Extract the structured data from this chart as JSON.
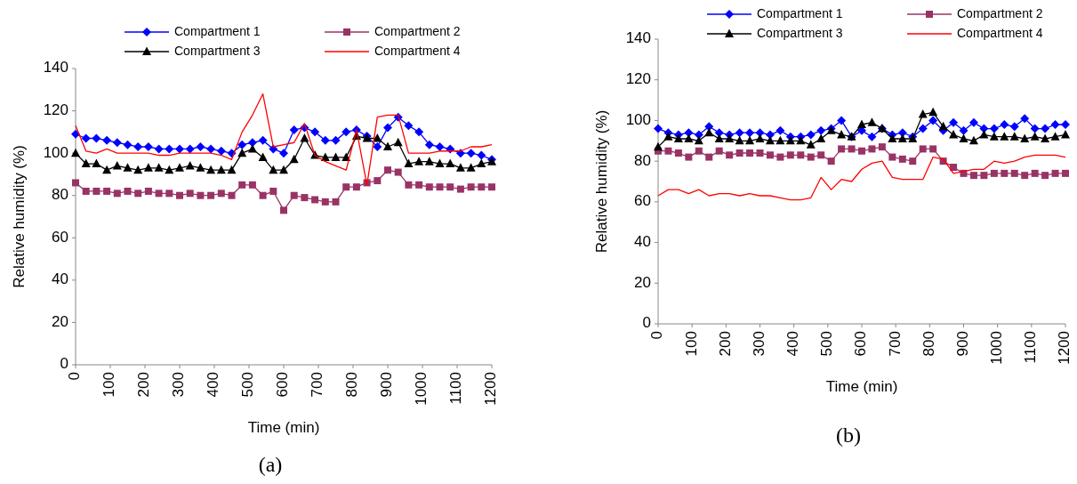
{
  "chart_data": [
    {
      "type": "line",
      "xlabel": "Time (min)",
      "ylabel": "Relative humidity (%)",
      "annotations": [
        "(a)"
      ],
      "xlim": [
        0,
        1200
      ],
      "xticks": [
        0,
        100,
        200,
        300,
        400,
        500,
        600,
        700,
        800,
        900,
        1000,
        1100,
        1200
      ],
      "ylim": [
        0,
        140
      ],
      "yticks": [
        0,
        20,
        40,
        60,
        80,
        100,
        120,
        140
      ],
      "grid": false,
      "legend": "top",
      "x": [
        0,
        30,
        60,
        90,
        120,
        150,
        180,
        210,
        240,
        270,
        300,
        330,
        360,
        390,
        420,
        450,
        480,
        510,
        540,
        570,
        600,
        630,
        660,
        690,
        720,
        750,
        780,
        810,
        840,
        870,
        900,
        930,
        960,
        990,
        1020,
        1050,
        1080,
        1110,
        1140,
        1170,
        1200
      ],
      "series": [
        {
          "name": "Compartment 1",
          "color": "#0000ff",
          "marker": "diamond",
          "values": [
            109,
            107,
            107,
            106,
            105,
            104,
            103,
            103,
            102,
            102,
            102,
            102,
            103,
            102,
            101,
            100,
            104,
            105,
            106,
            102,
            100,
            111,
            112,
            110,
            106,
            106,
            110,
            111,
            108,
            103,
            112,
            117,
            113,
            110,
            104,
            103,
            102,
            100,
            100,
            99,
            97
          ]
        },
        {
          "name": "Compartment 2",
          "color": "#993366",
          "marker": "square",
          "values": [
            86,
            82,
            82,
            82,
            81,
            82,
            81,
            82,
            81,
            81,
            80,
            81,
            80,
            80,
            81,
            80,
            85,
            85,
            80,
            82,
            73,
            80,
            79,
            78,
            77,
            77,
            84,
            84,
            86,
            87,
            92,
            91,
            85,
            85,
            84,
            84,
            84,
            83,
            84,
            84,
            84
          ]
        },
        {
          "name": "Compartment 3",
          "color": "#000000",
          "marker": "triangle",
          "values": [
            100,
            95,
            95,
            92,
            94,
            93,
            92,
            93,
            93,
            92,
            93,
            94,
            93,
            92,
            92,
            92,
            100,
            102,
            98,
            92,
            92,
            97,
            107,
            99,
            98,
            98,
            98,
            108,
            107,
            107,
            103,
            105,
            95,
            96,
            96,
            95,
            95,
            93,
            93,
            95,
            96
          ]
        },
        {
          "name": "Compartment 4",
          "color": "#ff0000",
          "marker": "none",
          "values": [
            113,
            101,
            100,
            102,
            100,
            100,
            100,
            100,
            99,
            99,
            100,
            100,
            100,
            100,
            99,
            97,
            110,
            118,
            128,
            103,
            104,
            105,
            114,
            99,
            96,
            94,
            92,
            111,
            85,
            117,
            118,
            118,
            100,
            100,
            100,
            101,
            101,
            101,
            103,
            103,
            104
          ]
        }
      ]
    },
    {
      "type": "line",
      "xlabel": "Time (min)",
      "ylabel": "Relative humidity (%)",
      "annotations": [
        "(b)"
      ],
      "xlim": [
        0,
        1200
      ],
      "xticks": [
        0,
        100,
        200,
        300,
        400,
        500,
        600,
        700,
        800,
        900,
        1000,
        1100,
        1200
      ],
      "ylim": [
        0,
        140
      ],
      "yticks": [
        0,
        20,
        40,
        60,
        80,
        100,
        120,
        140
      ],
      "grid": false,
      "legend": "top",
      "x": [
        0,
        30,
        60,
        90,
        120,
        150,
        180,
        210,
        240,
        270,
        300,
        330,
        360,
        390,
        420,
        450,
        480,
        510,
        540,
        570,
        600,
        630,
        660,
        690,
        720,
        750,
        780,
        810,
        840,
        870,
        900,
        930,
        960,
        990,
        1020,
        1050,
        1080,
        1110,
        1140,
        1170,
        1200
      ],
      "series": [
        {
          "name": "Compartment 1",
          "color": "#0000ff",
          "marker": "diamond",
          "values": [
            96,
            94,
            93,
            94,
            93,
            97,
            94,
            93,
            94,
            94,
            94,
            93,
            95,
            92,
            92,
            93,
            95,
            96,
            100,
            92,
            95,
            92,
            96,
            93,
            94,
            92,
            96,
            100,
            95,
            99,
            95,
            99,
            96,
            96,
            98,
            97,
            101,
            96,
            96,
            98,
            98
          ]
        },
        {
          "name": "Compartment 2",
          "color": "#993366",
          "marker": "square",
          "values": [
            85,
            85,
            84,
            82,
            85,
            82,
            85,
            83,
            84,
            84,
            84,
            83,
            82,
            83,
            83,
            82,
            83,
            80,
            86,
            86,
            85,
            86,
            87,
            82,
            81,
            80,
            86,
            86,
            80,
            77,
            74,
            73,
            73,
            74,
            74,
            74,
            73,
            74,
            73,
            74,
            74
          ]
        },
        {
          "name": "Compartment 3",
          "color": "#000000",
          "marker": "triangle",
          "values": [
            87,
            92,
            91,
            91,
            90,
            94,
            91,
            91,
            90,
            90,
            91,
            90,
            90,
            90,
            90,
            88,
            91,
            95,
            93,
            92,
            98,
            99,
            96,
            91,
            91,
            91,
            103,
            104,
            97,
            93,
            91,
            90,
            93,
            92,
            92,
            92,
            91,
            92,
            91,
            92,
            93
          ]
        },
        {
          "name": "Compartment 4",
          "color": "#ff0000",
          "marker": "none",
          "values": [
            63,
            66,
            66,
            64,
            66,
            63,
            64,
            64,
            63,
            64,
            63,
            63,
            62,
            61,
            61,
            62,
            72,
            66,
            71,
            70,
            76,
            79,
            80,
            72,
            71,
            71,
            71,
            82,
            81,
            74,
            75,
            76,
            76,
            80,
            79,
            80,
            82,
            83,
            83,
            83,
            82
          ]
        }
      ]
    }
  ]
}
